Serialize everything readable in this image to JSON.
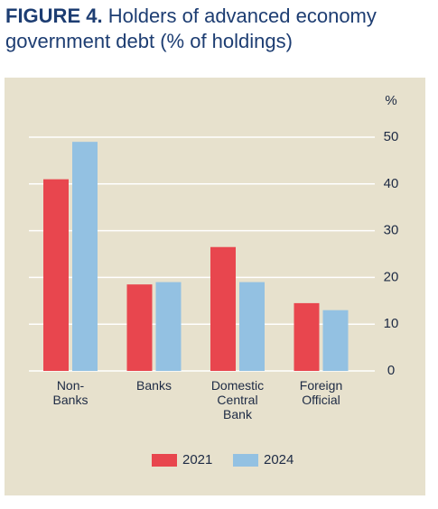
{
  "chart_data": {
    "type": "bar",
    "figure_label": "FIGURE 4.",
    "title": "Holders of advanced economy government debt (% of holdings)",
    "y_unit": "%",
    "categories": [
      "Non-\nBanks",
      "Banks",
      "Domestic\nCentral\nBank",
      "Foreign\nOfficial"
    ],
    "series": [
      {
        "name": "2021",
        "color": "#e8464e",
        "values": [
          41,
          18.5,
          26.5,
          14.5
        ]
      },
      {
        "name": "2024",
        "color": "#93c1e2",
        "values": [
          49,
          19,
          19,
          13
        ]
      }
    ],
    "ylim": [
      0,
      50
    ],
    "yticks": [
      0,
      10,
      20,
      30,
      40,
      50
    ],
    "grid": true,
    "legend": "bottom"
  }
}
